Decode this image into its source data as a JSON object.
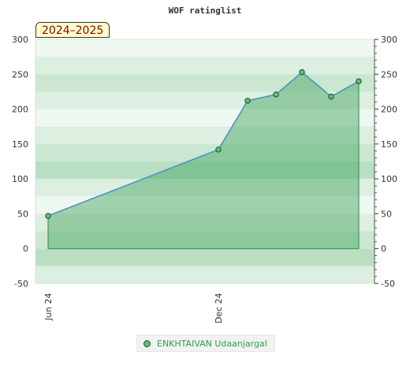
{
  "chart_data": {
    "type": "area",
    "title": "WOF ratinglist",
    "badge": "2024–2025",
    "xlabel": "",
    "ylabel": "",
    "ylim": [
      -50,
      300
    ],
    "yticks": [
      "-50",
      "0",
      "50",
      "100",
      "150",
      "200",
      "250",
      "300"
    ],
    "xticks": [
      "Jun 24",
      "Dec 24"
    ],
    "grid": true,
    "legend_position": "bottom-center",
    "series": [
      {
        "name": "ENKHTAIVAN Udaanjargal",
        "color": "#5fbf7a",
        "line_color": "#4a90c2",
        "points": [
          {
            "x": "2024-06",
            "y": 47
          },
          {
            "x": "2024-12",
            "y": 142
          },
          {
            "x": "2025-01",
            "y": 212
          },
          {
            "x": "2025-02",
            "y": 221
          },
          {
            "x": "2025-03",
            "y": 253
          },
          {
            "x": "2025-04",
            "y": 218
          },
          {
            "x": "2025-05",
            "y": 240
          }
        ]
      }
    ]
  }
}
